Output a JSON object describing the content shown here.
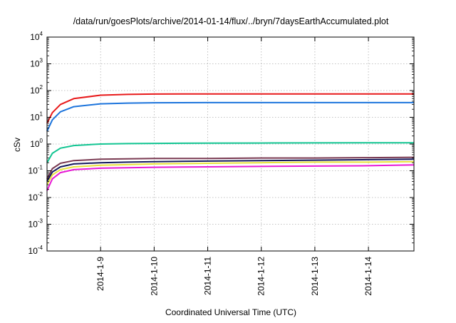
{
  "chart_data": {
    "type": "line",
    "title": "/data/run/goesPlots/archive/2014-01-14/flux/../bryn/7daysEarthAccumulated.plot",
    "xlabel": "Coordinated Universal Time (UTC)",
    "ylabel": "cSv",
    "yscale": "log",
    "ylim": [
      0.0001,
      10000
    ],
    "xlim": [
      0,
      6.85
    ],
    "grid": true,
    "x_tick_labels": [
      {
        "label": "2014-1-9",
        "x": 1
      },
      {
        "label": "2014-1-10",
        "x": 2
      },
      {
        "label": "2014-1-11",
        "x": 3
      },
      {
        "label": "2014-1-12",
        "x": 4
      },
      {
        "label": "2014-1-13",
        "x": 5
      },
      {
        "label": "2014-1-14",
        "x": 6
      }
    ],
    "y_tick_labels": [
      {
        "base": "10",
        "exp": "-4",
        "value": 0.0001
      },
      {
        "base": "10",
        "exp": "-3",
        "value": 0.001
      },
      {
        "base": "10",
        "exp": "-2",
        "value": 0.01
      },
      {
        "base": "10",
        "exp": "-1",
        "value": 0.1
      },
      {
        "base": "10",
        "exp": "0",
        "value": 1
      },
      {
        "base": "10",
        "exp": "1",
        "value": 10
      },
      {
        "base": "10",
        "exp": "2",
        "value": 100
      },
      {
        "base": "10",
        "exp": "3",
        "value": 1000
      },
      {
        "base": "10",
        "exp": "4",
        "value": 10000
      }
    ],
    "series": [
      {
        "name": "red",
        "color": "#e8191a",
        "x": [
          0,
          0.1,
          0.25,
          0.5,
          1,
          1.5,
          2,
          3,
          4,
          5,
          6,
          6.85
        ],
        "values": [
          6,
          15,
          30,
          50,
          67,
          72,
          74,
          75,
          75,
          75,
          75,
          75
        ]
      },
      {
        "name": "blue",
        "color": "#1c74dc",
        "x": [
          0,
          0.1,
          0.25,
          0.5,
          1,
          1.5,
          2,
          3,
          4,
          5,
          6,
          6.85
        ],
        "values": [
          3,
          8,
          16,
          25,
          32,
          34,
          35,
          35.5,
          35.5,
          35.5,
          35.5,
          35.5
        ]
      },
      {
        "name": "green",
        "color": "#12c592",
        "x": [
          0,
          0.1,
          0.25,
          0.5,
          1,
          1.5,
          2,
          3,
          4,
          5,
          6,
          6.85
        ],
        "values": [
          0.2,
          0.45,
          0.7,
          0.88,
          1.0,
          1.04,
          1.06,
          1.08,
          1.09,
          1.1,
          1.11,
          1.12
        ]
      },
      {
        "name": "maroon",
        "color": "#7a3a52",
        "x": [
          0,
          0.1,
          0.25,
          0.5,
          1,
          1.5,
          2,
          3,
          4,
          5,
          6,
          6.85
        ],
        "values": [
          0.05,
          0.12,
          0.19,
          0.24,
          0.27,
          0.28,
          0.29,
          0.29,
          0.3,
          0.3,
          0.31,
          0.32
        ]
      },
      {
        "name": "navy",
        "color": "#151a5e",
        "x": [
          0,
          0.1,
          0.25,
          0.5,
          1,
          1.5,
          2,
          3,
          4,
          5,
          6,
          6.85
        ],
        "values": [
          0.04,
          0.09,
          0.14,
          0.18,
          0.2,
          0.21,
          0.22,
          0.23,
          0.24,
          0.25,
          0.26,
          0.27
        ]
      },
      {
        "name": "yellow",
        "color": "#e8e23a",
        "x": [
          0,
          0.1,
          0.25,
          0.5,
          1,
          1.5,
          2,
          3,
          4,
          5,
          6,
          6.85
        ],
        "values": [
          0.03,
          0.07,
          0.11,
          0.14,
          0.16,
          0.17,
          0.18,
          0.19,
          0.2,
          0.21,
          0.21,
          0.22
        ]
      },
      {
        "name": "magenta",
        "color": "#e81ad6",
        "x": [
          0,
          0.1,
          0.25,
          0.5,
          1,
          1.5,
          2,
          3,
          4,
          5,
          6,
          6.85
        ],
        "values": [
          0.018,
          0.05,
          0.085,
          0.11,
          0.125,
          0.13,
          0.135,
          0.14,
          0.145,
          0.15,
          0.155,
          0.165
        ]
      }
    ]
  }
}
